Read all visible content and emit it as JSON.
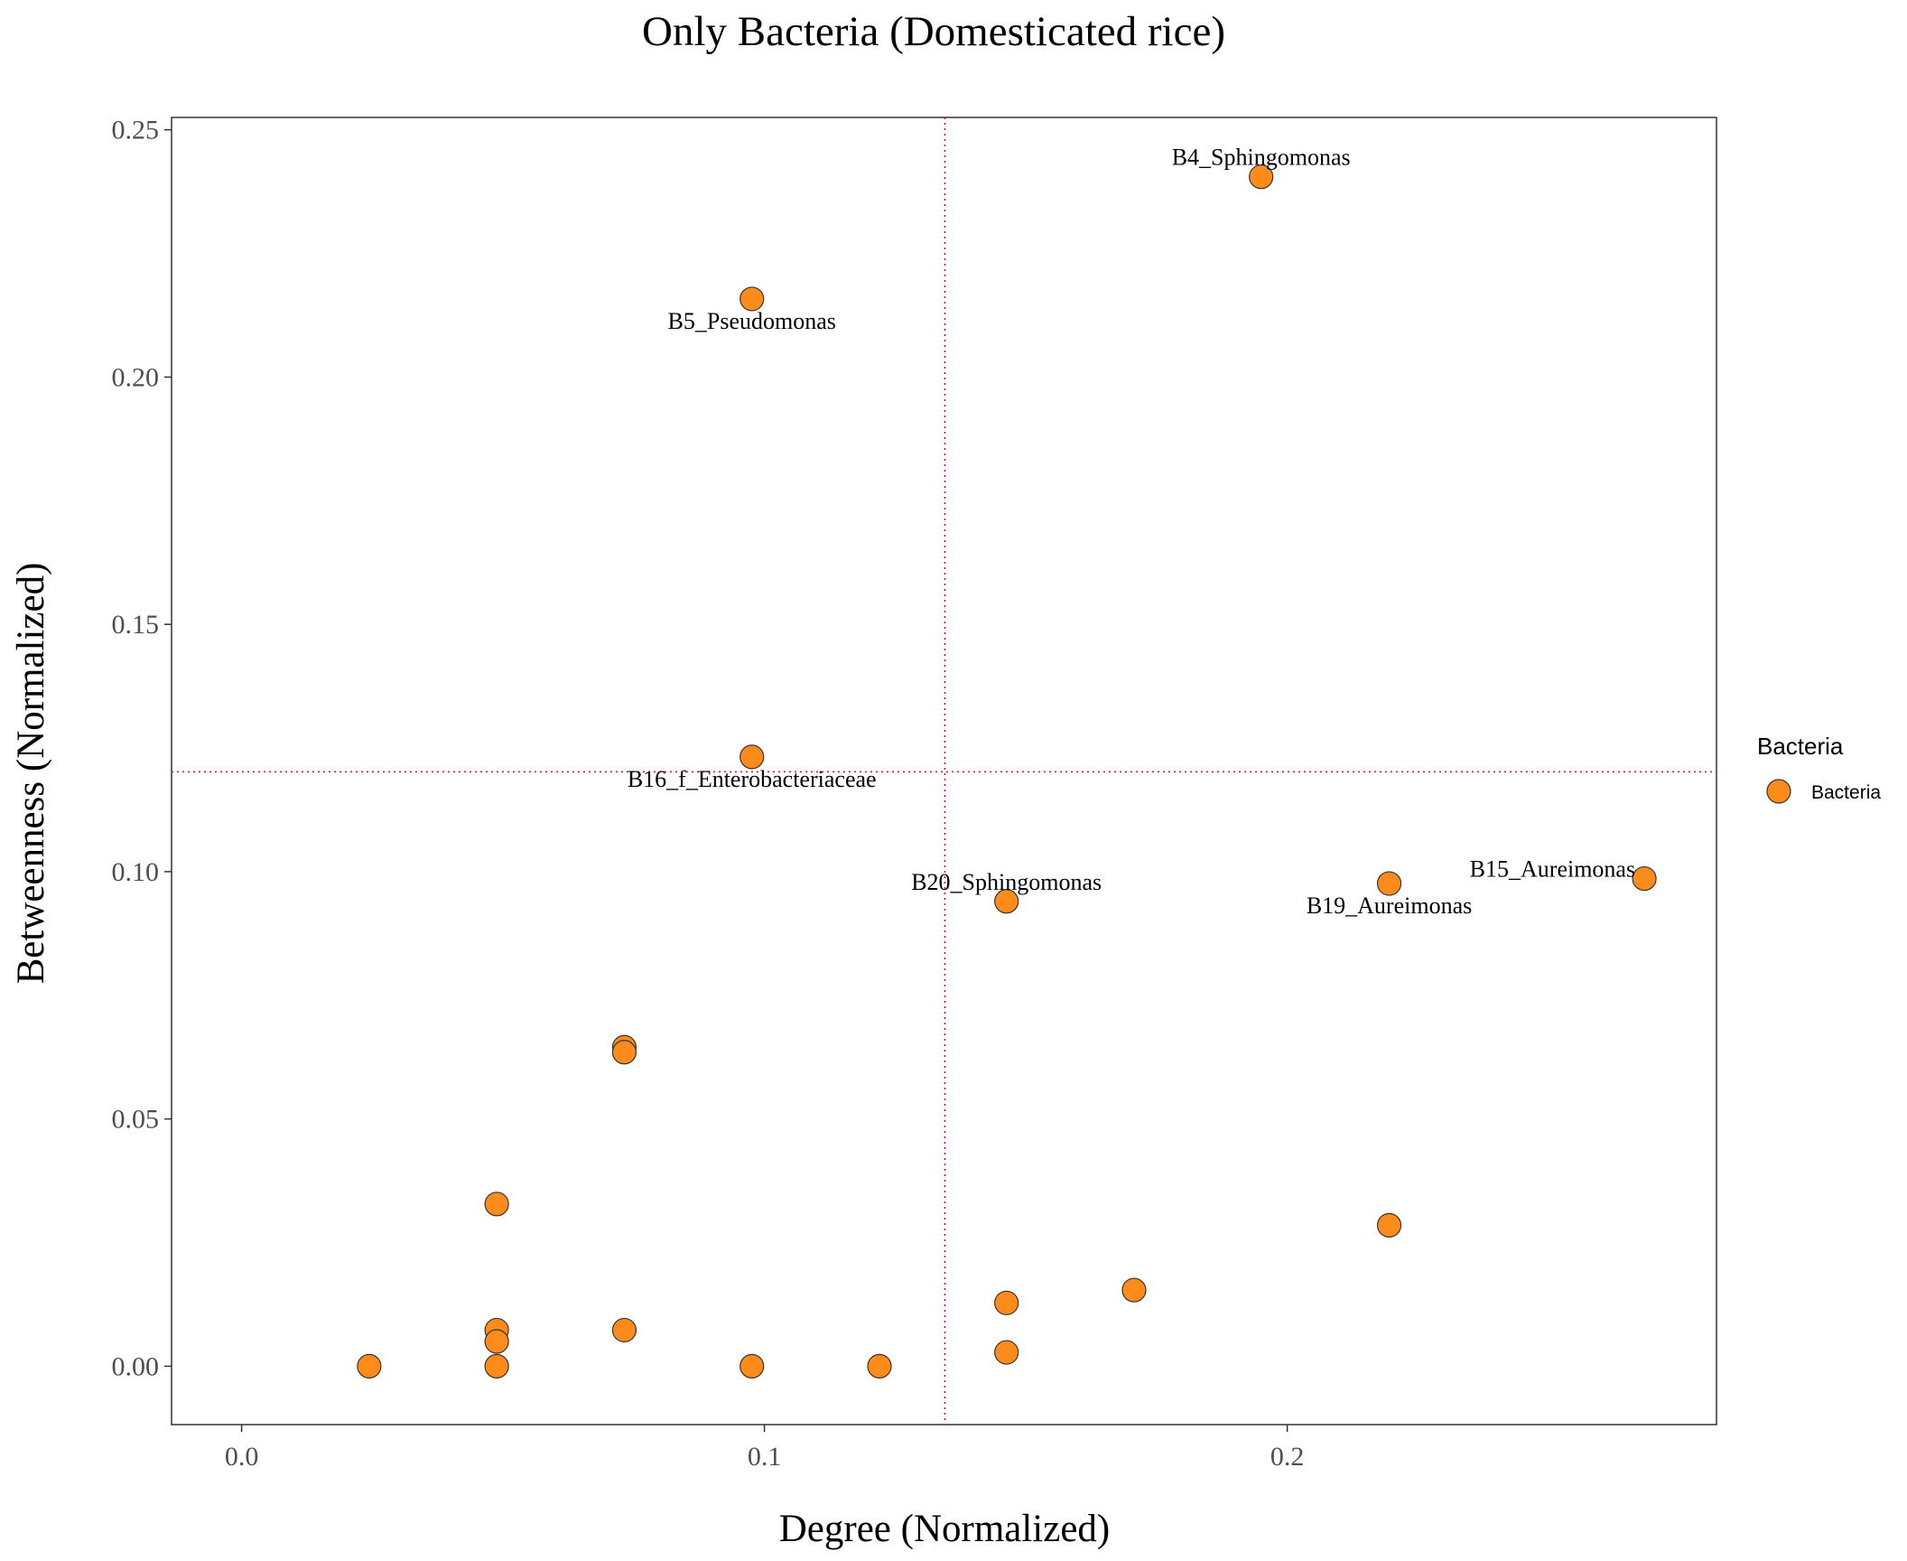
{
  "chart_data": {
    "type": "scatter",
    "title": "Only Bacteria (Domesticated rice)",
    "xlabel": "Degree (Normalized)",
    "ylabel": "Betweenness (Normalized)",
    "xlim": [
      -0.0134,
      0.2821
    ],
    "ylim": [
      -0.0118,
      0.2525
    ],
    "x_ticks": [
      0.0,
      0.1,
      0.2
    ],
    "x_tick_labels": [
      "0.0",
      "0.1",
      "0.2"
    ],
    "y_ticks": [
      0.0,
      0.05,
      0.1,
      0.15,
      0.2,
      0.25
    ],
    "y_tick_labels": [
      "0.00",
      "0.05",
      "0.10",
      "0.15",
      "0.20",
      "0.25"
    ],
    "reference_lines": {
      "vertical_x": 0.1345,
      "horizontal_y": 0.1202,
      "style": "dotted",
      "color": "#d0103a"
    },
    "grid": false,
    "legend": {
      "title": "Bacteria",
      "position": "right",
      "entries": [
        {
          "label": "Bacteria",
          "color": "#ff8c1a"
        }
      ]
    },
    "series": [
      {
        "name": "Bacteria",
        "color": "#ff8c1a",
        "points": [
          {
            "x": 0.195,
            "y": 0.2405,
            "label": "B4_Sphingomonas",
            "label_pos": "above"
          },
          {
            "x": 0.0976,
            "y": 0.2158,
            "label": "B5_Pseudomonas",
            "label_pos": "below"
          },
          {
            "x": 0.0976,
            "y": 0.1232,
            "label": "B16_f_Enterobacteriaceae",
            "label_pos": "below"
          },
          {
            "x": 0.1463,
            "y": 0.094,
            "label": "B20_Sphingomonas",
            "label_pos": "above"
          },
          {
            "x": 0.2195,
            "y": 0.0976,
            "label": "B19_Aureimonas",
            "label_pos": "below"
          },
          {
            "x": 0.2683,
            "y": 0.0986,
            "label": "B15_Aureimonas",
            "label_pos": "left"
          },
          {
            "x": 0.0732,
            "y": 0.0645,
            "label": ""
          },
          {
            "x": 0.0732,
            "y": 0.0635,
            "label": ""
          },
          {
            "x": 0.0488,
            "y": 0.0328,
            "label": ""
          },
          {
            "x": 0.0488,
            "y": 0.0073,
            "label": ""
          },
          {
            "x": 0.0488,
            "y": 0.005,
            "label": ""
          },
          {
            "x": 0.0488,
            "y": 0.0,
            "label": ""
          },
          {
            "x": 0.0244,
            "y": 0.0,
            "label": ""
          },
          {
            "x": 0.0732,
            "y": 0.0073,
            "label": ""
          },
          {
            "x": 0.0976,
            "y": 0.0,
            "label": ""
          },
          {
            "x": 0.122,
            "y": 0.0,
            "label": ""
          },
          {
            "x": 0.1463,
            "y": 0.0128,
            "label": ""
          },
          {
            "x": 0.1463,
            "y": 0.0028,
            "label": ""
          },
          {
            "x": 0.1707,
            "y": 0.0154,
            "label": ""
          },
          {
            "x": 0.2195,
            "y": 0.0285,
            "label": ""
          }
        ]
      }
    ]
  }
}
